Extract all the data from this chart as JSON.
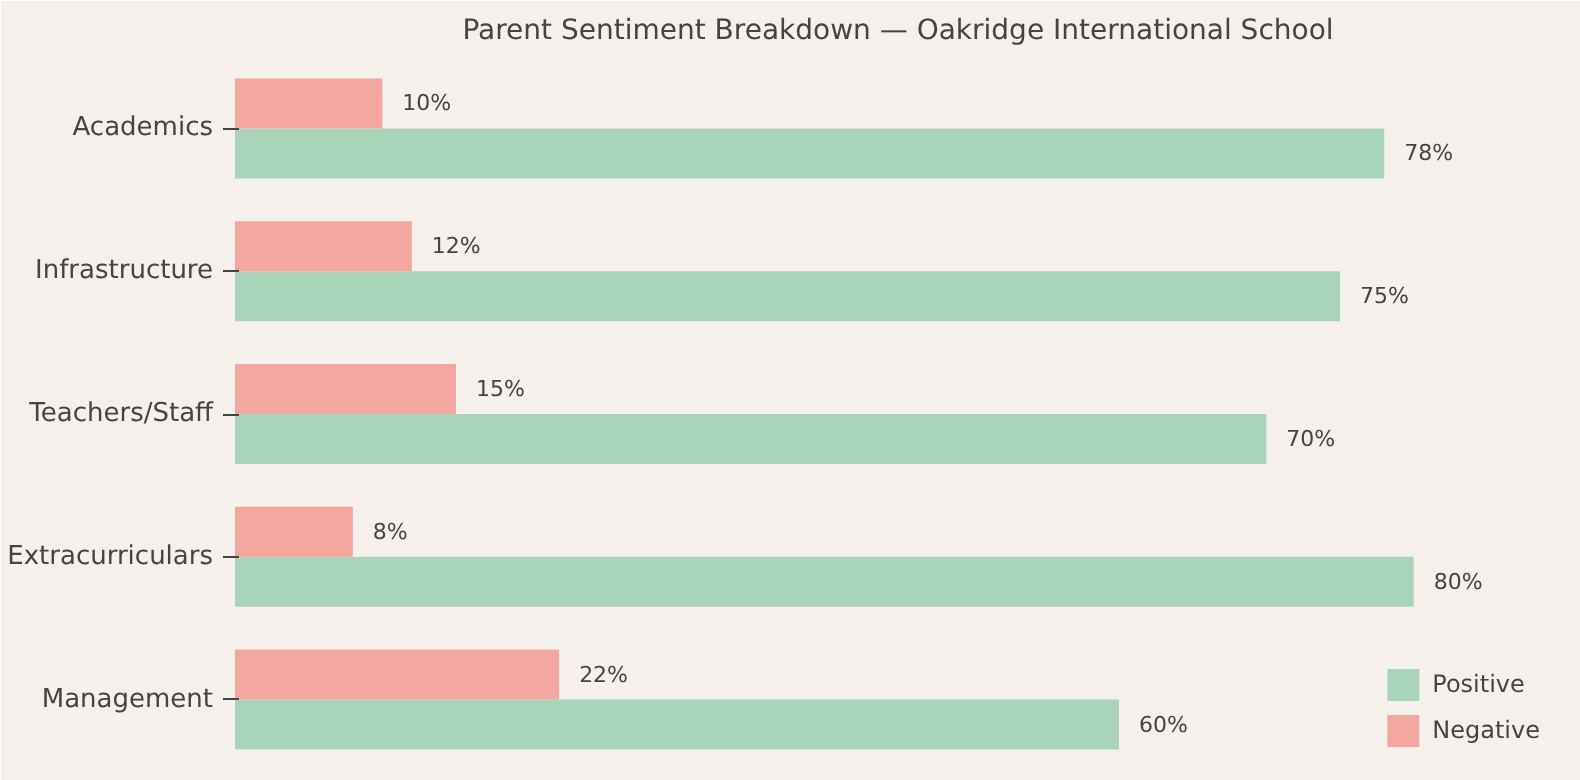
{
  "chart_data": {
    "type": "bar",
    "orientation": "horizontal",
    "title": "Parent Sentiment Breakdown — Oakridge International School",
    "categories": [
      "Academics",
      "Infrastructure",
      "Teachers/Staff",
      "Extracurriculars",
      "Management"
    ],
    "series": [
      {
        "name": "Positive",
        "color": "#a8d5ba",
        "values": [
          78,
          75,
          70,
          80,
          60
        ],
        "value_labels": [
          "78%",
          "75%",
          "70%",
          "80%",
          "60%"
        ]
      },
      {
        "name": "Negative",
        "color": "#f4a6a1",
        "values": [
          10,
          12,
          15,
          8,
          22
        ],
        "value_labels": [
          "10%",
          "12%",
          "15%",
          "8%",
          "22%"
        ]
      }
    ],
    "legend": "bottom right",
    "grid": false,
    "tick_labels": "y"
  }
}
